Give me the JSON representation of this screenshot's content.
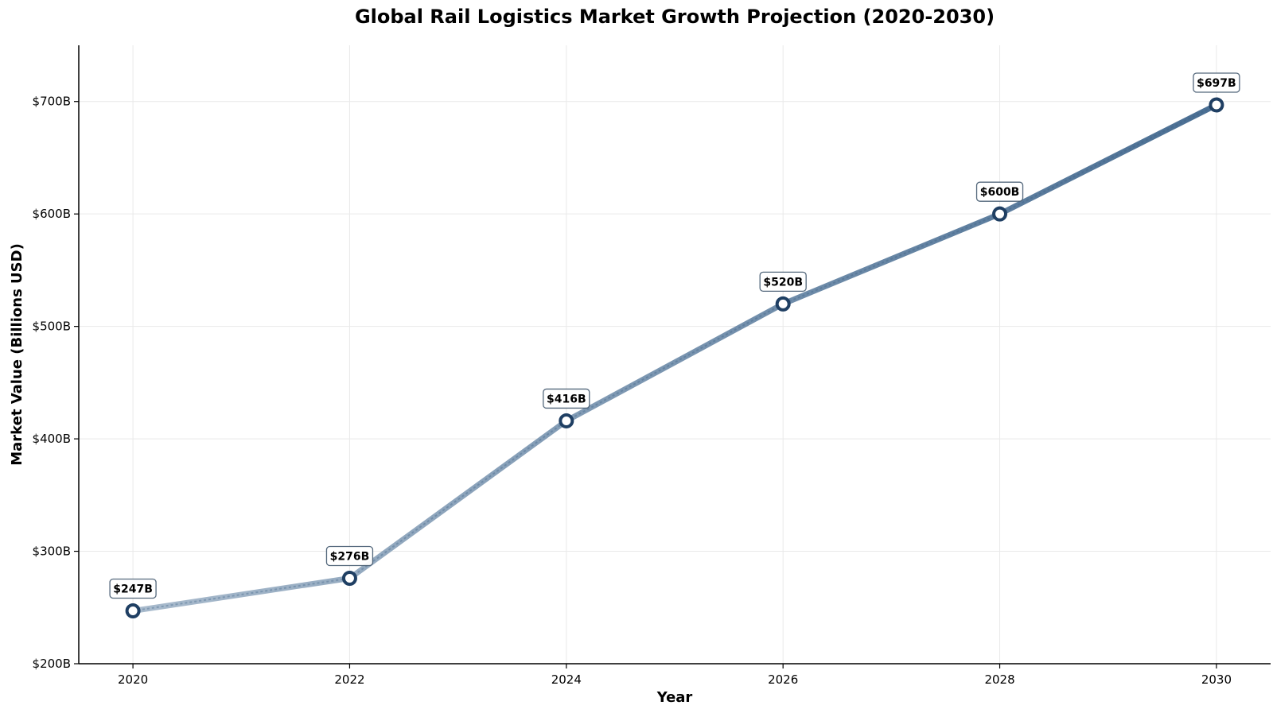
{
  "chart_data": {
    "type": "line",
    "title": "Global Rail Logistics Market Growth Projection (2020-2030)",
    "xlabel": "Year",
    "ylabel": "Market Value (Billions USD)",
    "x": [
      2020,
      2022,
      2024,
      2026,
      2028,
      2030
    ],
    "series": [
      {
        "values": [
          247,
          276,
          416,
          520,
          600,
          697
        ]
      }
    ],
    "data_labels": [
      "$247B",
      "$276B",
      "$416B",
      "$520B",
      "$600B",
      "$697B"
    ],
    "xlim": [
      2019.5,
      2030.5
    ],
    "ylim": [
      200,
      750
    ],
    "xticks": [
      2020,
      2022,
      2024,
      2026,
      2028,
      2030
    ],
    "yticks": [
      200,
      300,
      400,
      500,
      600,
      700
    ],
    "ytick_labels": [
      "$200B",
      "$300B",
      "$400B",
      "$500B",
      "$600B",
      "$700B"
    ],
    "grid": true,
    "colors": {
      "line_start": "#9aafc4",
      "line_end": "#2a5580",
      "marker_edge": "#1f3f63",
      "label_box_edge": "#4b6075"
    }
  }
}
